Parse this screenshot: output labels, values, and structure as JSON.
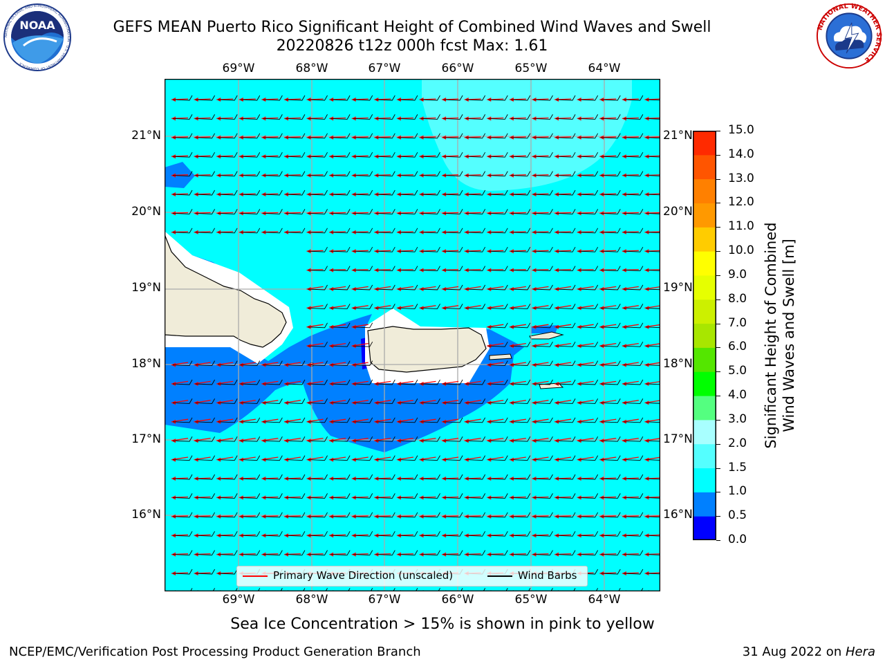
{
  "header": {
    "title_line1": "GEFS MEAN Puerto Rico Significant Height of Combined Wind Waves and Swell",
    "title_line2": "20220826 t12z 000h fcst   Max: 1.61"
  },
  "logos": {
    "noaa_text": "NOAA",
    "noaa_ring": "NATIONAL OCEANIC AND ATMOSPHERIC ADMINISTRATION · U.S. DEPARTMENT OF COMMERCE",
    "nws_ring": "NATIONAL WEATHER SERVICE"
  },
  "map": {
    "lon_labels": [
      "69°W",
      "68°W",
      "67°W",
      "66°W",
      "65°W",
      "64°W"
    ],
    "lat_labels": [
      "21°N",
      "20°N",
      "19°N",
      "18°N",
      "17°N",
      "16°N"
    ],
    "colors": {
      "ocean": "#00ffff",
      "land": "#f0ecd9",
      "land_edge_mask": "#ffffff",
      "band_0_5_1_0": "#0080ff",
      "band_0_0_0_5": "#0000ff",
      "band_1_5_2_0": "#54ffff",
      "wave_arrow": "#ff0000",
      "wind_barb": "#000000",
      "gridline": "#aaaaaa"
    }
  },
  "legend": {
    "items": [
      {
        "label": "Primary Wave Direction (unscaled)",
        "color": "#ff0000"
      },
      {
        "label": "Wind Barbs",
        "color": "#000000"
      }
    ]
  },
  "colorbar": {
    "label_line1": "Significant Height of Combined",
    "label_line2": "Wind Waves and Swell [m]",
    "ticks": [
      "0.0",
      "0.5",
      "1.0",
      "1.5",
      "2.0",
      "3.0",
      "4.0",
      "5.0",
      "6.0",
      "7.0",
      "8.0",
      "9.0",
      "10.0",
      "11.0",
      "12.0",
      "13.0",
      "14.0",
      "15.0"
    ],
    "colors": [
      "#0000ff",
      "#0080ff",
      "#00ffff",
      "#54ffff",
      "#a8ffff",
      "#54ff80",
      "#00ff00",
      "#54e600",
      "#a8e600",
      "#ccf000",
      "#e6ff00",
      "#ffff00",
      "#ffcc00",
      "#ff9900",
      "#ff8000",
      "#ff5500",
      "#ff2a00"
    ]
  },
  "caption": "Sea Ice Concentration > 15% is shown in pink to yellow",
  "footer": {
    "left": "NCEP/EMC/Verification Post Processing Product Generation Branch",
    "right_prefix": "31 Aug 2022 on ",
    "right_host": "Hera"
  }
}
